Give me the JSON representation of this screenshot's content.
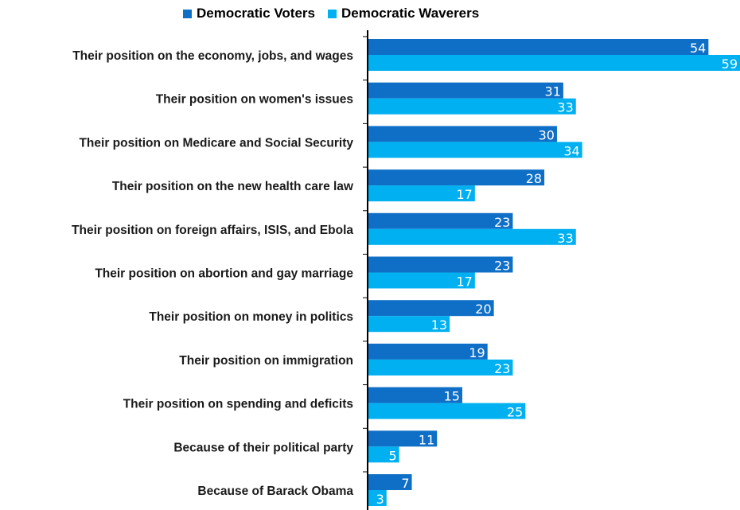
{
  "chart_data": {
    "type": "bar",
    "orientation": "horizontal",
    "categories": [
      "Their position on the economy, jobs, and wages",
      "Their position on women's issues",
      "Their position on Medicare and Social Security",
      "Their position on the new health care law",
      "Their position on foreign affairs, ISIS, and Ebola",
      "Their position on abortion and gay marriage",
      "Their position on money in politics",
      "Their position on immigration",
      "Their position on spending and deficits",
      "Because of their political party",
      "Because of Barack Obama"
    ],
    "series": [
      {
        "name": "Democratic Voters",
        "color": "#0f6fc6",
        "values": [
          54,
          31,
          30,
          28,
          23,
          23,
          20,
          19,
          15,
          11,
          7
        ]
      },
      {
        "name": "Democratic Waverers",
        "color": "#00b0f0",
        "values": [
          59,
          33,
          34,
          17,
          33,
          17,
          13,
          23,
          25,
          5,
          3
        ]
      }
    ],
    "xlim": [
      0,
      59
    ],
    "grid": false,
    "legend": "top"
  }
}
